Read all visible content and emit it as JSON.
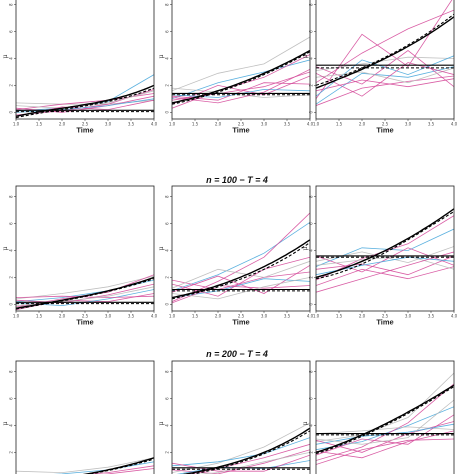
{
  "row_titles": [
    "",
    "n = 100 − T = 4",
    "n = 200 − T = 4"
  ],
  "colors": {
    "blue": "#4aa8dc",
    "pink": "#d54c9b",
    "grey": "#b9b9b9",
    "mean": "#000000"
  },
  "chart_data": {
    "type": "line",
    "layout": "3x3 grid of small multiples",
    "xlabel": "Time",
    "ylabel": "μ",
    "xticks": [
      "1.0",
      "1.5",
      "2.0",
      "2.5",
      "3.0",
      "3.5",
      "4.0"
    ],
    "xlim": [
      1,
      4
    ],
    "ylim": [
      -0.5,
      8.8
    ],
    "yticks": [
      0,
      2,
      4,
      6,
      8
    ],
    "x": [
      1,
      2,
      3,
      4
    ],
    "panels": [
      {
        "row": 0,
        "col": 0,
        "series": [
          {
            "color": "grey",
            "values": [
              0.7,
              0.6,
              0.6,
              0.9
            ]
          },
          {
            "color": "blue",
            "values": [
              0.1,
              0.3,
              0.8,
              2.8
            ]
          },
          {
            "color": "pink",
            "values": [
              -0.2,
              0.1,
              0.6,
              1.7
            ]
          },
          {
            "color": "pink",
            "values": [
              0.3,
              0.0,
              0.5,
              1.2
            ]
          },
          {
            "color": "pink",
            "values": [
              0.2,
              0.6,
              0.9,
              1.4
            ]
          },
          {
            "color": "grey",
            "values": [
              0.5,
              0.3,
              0.7,
              1.6
            ]
          },
          {
            "color": "pink",
            "values": [
              -0.3,
              0.4,
              0.2,
              0.9
            ]
          },
          {
            "color": "blue",
            "values": [
              0.0,
              0.2,
              0.5,
              1.0
            ]
          }
        ],
        "mean_curve": [
          -0.3,
          0.3,
          0.9,
          2.0
        ],
        "mean_dashed": [
          -0.4,
          0.2,
          0.8,
          1.8
        ],
        "flat_solid": 0.15,
        "flat_dashed": 0.05
      },
      {
        "row": 0,
        "col": 1,
        "series": [
          {
            "color": "grey",
            "values": [
              1.6,
              2.9,
              3.6,
              5.6
            ]
          },
          {
            "color": "blue",
            "values": [
              1.0,
              2.2,
              3.0,
              3.9
            ]
          },
          {
            "color": "pink",
            "values": [
              0.3,
              1.6,
              2.6,
              4.3
            ]
          },
          {
            "color": "pink",
            "values": [
              1.2,
              0.9,
              2.2,
              2.1
            ]
          },
          {
            "color": "pink",
            "values": [
              0.9,
              1.4,
              1.9,
              3.0
            ]
          },
          {
            "color": "grey",
            "values": [
              1.8,
              1.5,
              1.1,
              1.3
            ]
          },
          {
            "color": "pink",
            "values": [
              0.6,
              2.0,
              1.3,
              2.7
            ]
          },
          {
            "color": "blue",
            "values": [
              1.3,
              1.1,
              1.7,
              1.6
            ]
          },
          {
            "color": "pink",
            "values": [
              1.1,
              0.7,
              1.5,
              3.2
            ]
          }
        ],
        "mean_curve": [
          0.7,
          1.6,
          2.9,
          4.6
        ],
        "mean_dashed": [
          0.6,
          1.5,
          2.8,
          4.5
        ],
        "flat_solid": 1.4,
        "flat_dashed": 1.3
      },
      {
        "row": 0,
        "col": 2,
        "series": [
          {
            "color": "pink",
            "values": [
              1.0,
              5.8,
              3.4,
              8.6
            ]
          },
          {
            "color": "pink",
            "values": [
              2.2,
              4.4,
              6.2,
              7.6
            ]
          },
          {
            "color": "blue",
            "values": [
              0.6,
              2.9,
              2.6,
              3.4
            ]
          },
          {
            "color": "pink",
            "values": [
              3.4,
              2.1,
              4.6,
              1.9
            ]
          },
          {
            "color": "grey",
            "values": [
              3.1,
              3.6,
              4.1,
              4.0
            ]
          },
          {
            "color": "pink",
            "values": [
              1.6,
              2.4,
              1.9,
              2.5
            ]
          },
          {
            "color": "blue",
            "values": [
              1.2,
              3.9,
              2.8,
              4.2
            ]
          },
          {
            "color": "pink",
            "values": [
              0.5,
              1.8,
              2.3,
              2.7
            ]
          },
          {
            "color": "grey",
            "values": [
              2.6,
              3.0,
              2.2,
              3.3
            ]
          },
          {
            "color": "pink",
            "values": [
              2.9,
              1.2,
              3.7,
              2.8
            ]
          }
        ],
        "mean_curve": [
          1.8,
          3.2,
          4.9,
          7.1
        ],
        "mean_dashed": [
          2.0,
          3.3,
          5.0,
          7.3
        ],
        "flat_solid": 3.5,
        "flat_dashed": 3.3
      },
      {
        "row": 1,
        "col": 0,
        "series": [
          {
            "color": "grey",
            "values": [
              0.4,
              0.8,
              1.3,
              2.1
            ]
          },
          {
            "color": "blue",
            "values": [
              0.2,
              0.5,
              1.0,
              1.8
            ]
          },
          {
            "color": "pink",
            "values": [
              -0.2,
              0.4,
              0.9,
              2.2
            ]
          },
          {
            "color": "pink",
            "values": [
              0.3,
              0.1,
              0.7,
              1.5
            ]
          },
          {
            "color": "pink",
            "values": [
              -0.4,
              0.3,
              0.2,
              0.8
            ]
          },
          {
            "color": "blue",
            "values": [
              0.1,
              -0.1,
              0.4,
              1.1
            ]
          },
          {
            "color": "pink",
            "values": [
              0.5,
              0.6,
              0.5,
              0.6
            ]
          },
          {
            "color": "grey",
            "values": [
              -0.1,
              0.2,
              0.6,
              1.3
            ]
          }
        ],
        "mean_curve": [
          -0.3,
          0.3,
          1.0,
          2.0
        ],
        "mean_dashed": [
          -0.35,
          0.25,
          0.95,
          1.9
        ],
        "flat_solid": 0.15,
        "flat_dashed": 0.05
      },
      {
        "row": 1,
        "col": 1,
        "series": [
          {
            "color": "blue",
            "values": [
              1.0,
              2.2,
              3.8,
              6.1
            ]
          },
          {
            "color": "pink",
            "values": [
              0.2,
              1.7,
              3.5,
              6.8
            ]
          },
          {
            "color": "pink",
            "values": [
              1.8,
              1.1,
              2.0,
              2.4
            ]
          },
          {
            "color": "grey",
            "values": [
              1.2,
              2.6,
              2.0,
              3.2
            ]
          },
          {
            "color": "pink",
            "values": [
              0.9,
              2.1,
              0.8,
              2.9
            ]
          },
          {
            "color": "blue",
            "values": [
              0.5,
              1.0,
              1.9,
              1.7
            ]
          },
          {
            "color": "pink",
            "values": [
              1.5,
              0.6,
              2.6,
              3.5
            ]
          },
          {
            "color": "pink",
            "values": [
              0.1,
              1.4,
              1.2,
              1.4
            ]
          },
          {
            "color": "grey",
            "values": [
              0.8,
              0.4,
              1.3,
              2.0
            ]
          }
        ],
        "mean_curve": [
          0.5,
          1.4,
          2.8,
          4.8
        ],
        "mean_dashed": [
          0.4,
          1.3,
          2.6,
          4.6
        ],
        "flat_solid": 1.1,
        "flat_dashed": 1.0
      },
      {
        "row": 1,
        "col": 2,
        "series": [
          {
            "color": "blue",
            "values": [
              2.8,
              4.2,
              4.0,
              5.6
            ]
          },
          {
            "color": "pink",
            "values": [
              1.8,
              3.4,
              4.5,
              6.6
            ]
          },
          {
            "color": "pink",
            "values": [
              3.6,
              2.4,
              4.2,
              2.9
            ]
          },
          {
            "color": "grey",
            "values": [
              3.2,
              3.9,
              3.1,
              4.3
            ]
          },
          {
            "color": "pink",
            "values": [
              2.6,
              3.0,
              2.2,
              3.6
            ]
          },
          {
            "color": "blue",
            "values": [
              2.2,
              2.9,
              3.5,
              3.2
            ]
          },
          {
            "color": "pink",
            "values": [
              1.4,
              2.6,
              1.9,
              2.8
            ]
          },
          {
            "color": "grey",
            "values": [
              2.9,
              3.3,
              3.6,
              2.6
            ]
          },
          {
            "color": "pink",
            "values": [
              0.9,
              1.9,
              2.9,
              3.9
            ]
          }
        ],
        "mean_curve": [
          2.0,
          3.2,
          4.9,
          7.1
        ],
        "mean_dashed": [
          1.9,
          3.0,
          4.8,
          6.9
        ],
        "flat_solid": 3.6,
        "flat_dashed": 3.5
      },
      {
        "row": 2,
        "col": 0,
        "series": [
          {
            "color": "grey",
            "values": [
              0.6,
              0.5,
              0.9,
              1.6
            ]
          },
          {
            "color": "blue",
            "values": [
              0.2,
              0.4,
              0.7,
              1.3
            ]
          },
          {
            "color": "pink",
            "values": [
              -0.2,
              0.2,
              0.5,
              1.0
            ]
          },
          {
            "color": "pink",
            "values": [
              0.3,
              0.0,
              0.4,
              0.8
            ]
          }
        ],
        "mean_curve": [
          -0.3,
          0.1,
          0.7,
          1.6
        ],
        "mean_dashed": [
          -0.35,
          0.05,
          0.65,
          1.5
        ],
        "flat_solid": 0.1,
        "flat_dashed": 0.0
      },
      {
        "row": 2,
        "col": 1,
        "series": [
          {
            "color": "grey",
            "values": [
              0.5,
              1.2,
              2.4,
              4.2
            ]
          },
          {
            "color": "blue",
            "values": [
              1.0,
              1.3,
              1.9,
              3.1
            ]
          },
          {
            "color": "pink",
            "values": [
              0.1,
              0.8,
              1.6,
              2.6
            ]
          },
          {
            "color": "pink",
            "values": [
              0.7,
              0.4,
              1.2,
              2.2
            ]
          },
          {
            "color": "blue",
            "values": [
              0.3,
              0.9,
              0.8,
              1.4
            ]
          },
          {
            "color": "pink",
            "values": [
              1.2,
              0.6,
              0.6,
              1.8
            ]
          },
          {
            "color": "grey",
            "values": [
              0.2,
              0.5,
              1.3,
              2.0
            ]
          }
        ],
        "mean_curve": [
          0.2,
          0.9,
          2.0,
          3.8
        ],
        "mean_dashed": [
          0.1,
          0.8,
          1.9,
          3.6
        ],
        "flat_solid": 0.85,
        "flat_dashed": 0.75
      },
      {
        "row": 2,
        "col": 2,
        "series": [
          {
            "color": "grey",
            "values": [
              2.8,
              3.3,
              4.6,
              7.9
            ]
          },
          {
            "color": "blue",
            "values": [
              2.2,
              2.8,
              4.0,
              5.4
            ]
          },
          {
            "color": "pink",
            "values": [
              1.4,
              2.4,
              4.2,
              7.1
            ]
          },
          {
            "color": "pink",
            "values": [
              2.9,
              2.0,
              3.4,
              4.3
            ]
          },
          {
            "color": "grey",
            "values": [
              3.4,
              3.6,
              3.9,
              3.7
            ]
          },
          {
            "color": "pink",
            "values": [
              1.8,
              3.0,
              2.6,
              4.8
            ]
          },
          {
            "color": "blue",
            "values": [
              2.6,
              3.2,
              3.5,
              4.1
            ]
          },
          {
            "color": "pink",
            "values": [
              2.1,
              1.6,
              2.8,
              3.6
            ]
          },
          {
            "color": "pink",
            "values": [
              1.1,
              2.2,
              2.9,
              3.0
            ]
          },
          {
            "color": "grey",
            "values": [
              3.0,
              2.6,
              3.1,
              5.9
            ]
          }
        ],
        "mean_curve": [
          2.0,
          3.3,
          5.0,
          7.0
        ],
        "mean_dashed": [
          1.9,
          3.2,
          4.9,
          6.9
        ],
        "flat_solid": 3.4,
        "flat_dashed": 3.3
      }
    ]
  }
}
